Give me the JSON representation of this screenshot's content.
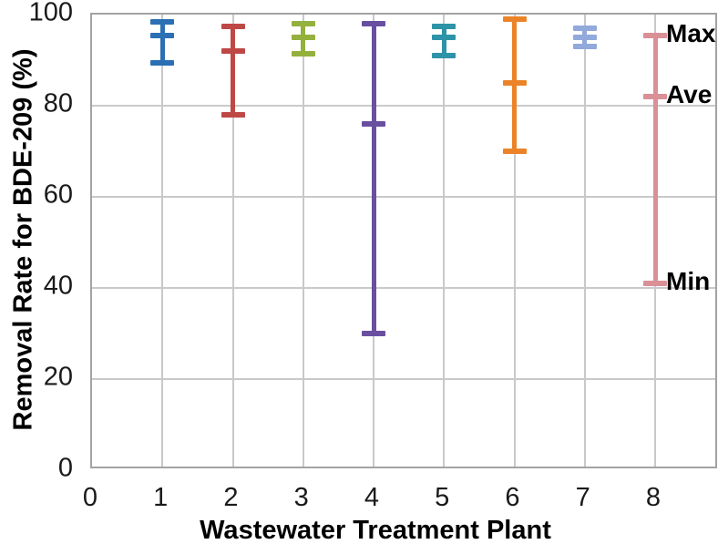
{
  "chart_data": {
    "type": "error-bar",
    "title": "",
    "xlabel": "Wastewater Treatment Plant",
    "ylabel": "Removal Rate for BDE-209 (%)",
    "xlim": [
      0,
      8.88
    ],
    "ylim": [
      0,
      100
    ],
    "xticks": [
      0,
      1,
      2,
      3,
      4,
      5,
      6,
      7,
      8
    ],
    "yticks": [
      0,
      20,
      40,
      60,
      80,
      100
    ],
    "grid": true,
    "legend_position": "none",
    "gridline_color": "#c9c9c9",
    "border_color": "#a3a3a3",
    "series": [
      {
        "plant": "1",
        "min": 89.5,
        "ave": 95.5,
        "max": 98.5,
        "color": "#2b6fb4"
      },
      {
        "plant": "2",
        "min": 78,
        "ave": 92,
        "max": 97.5,
        "color": "#be4846"
      },
      {
        "plant": "3",
        "min": 91.5,
        "ave": 95,
        "max": 98,
        "color": "#93b13c"
      },
      {
        "plant": "4",
        "min": 30,
        "ave": 76,
        "max": 98,
        "color": "#6a4fa0"
      },
      {
        "plant": "5",
        "min": 91,
        "ave": 95,
        "max": 97.5,
        "color": "#2d93a8"
      },
      {
        "plant": "6",
        "min": 70,
        "ave": 85,
        "max": 99,
        "color": "#eb8428"
      },
      {
        "plant": "7",
        "min": 93,
        "ave": 95,
        "max": 97,
        "color": "#91a9db"
      },
      {
        "plant": "8",
        "min": 41,
        "ave": 82,
        "max": 95.5,
        "color": "#da9097"
      }
    ],
    "annotations": [
      {
        "label": "Max",
        "at_plant": 8,
        "y": 95.5
      },
      {
        "label": "Ave",
        "at_plant": 8,
        "y": 82
      },
      {
        "label": "Min",
        "at_plant": 8,
        "y": 41
      }
    ]
  }
}
